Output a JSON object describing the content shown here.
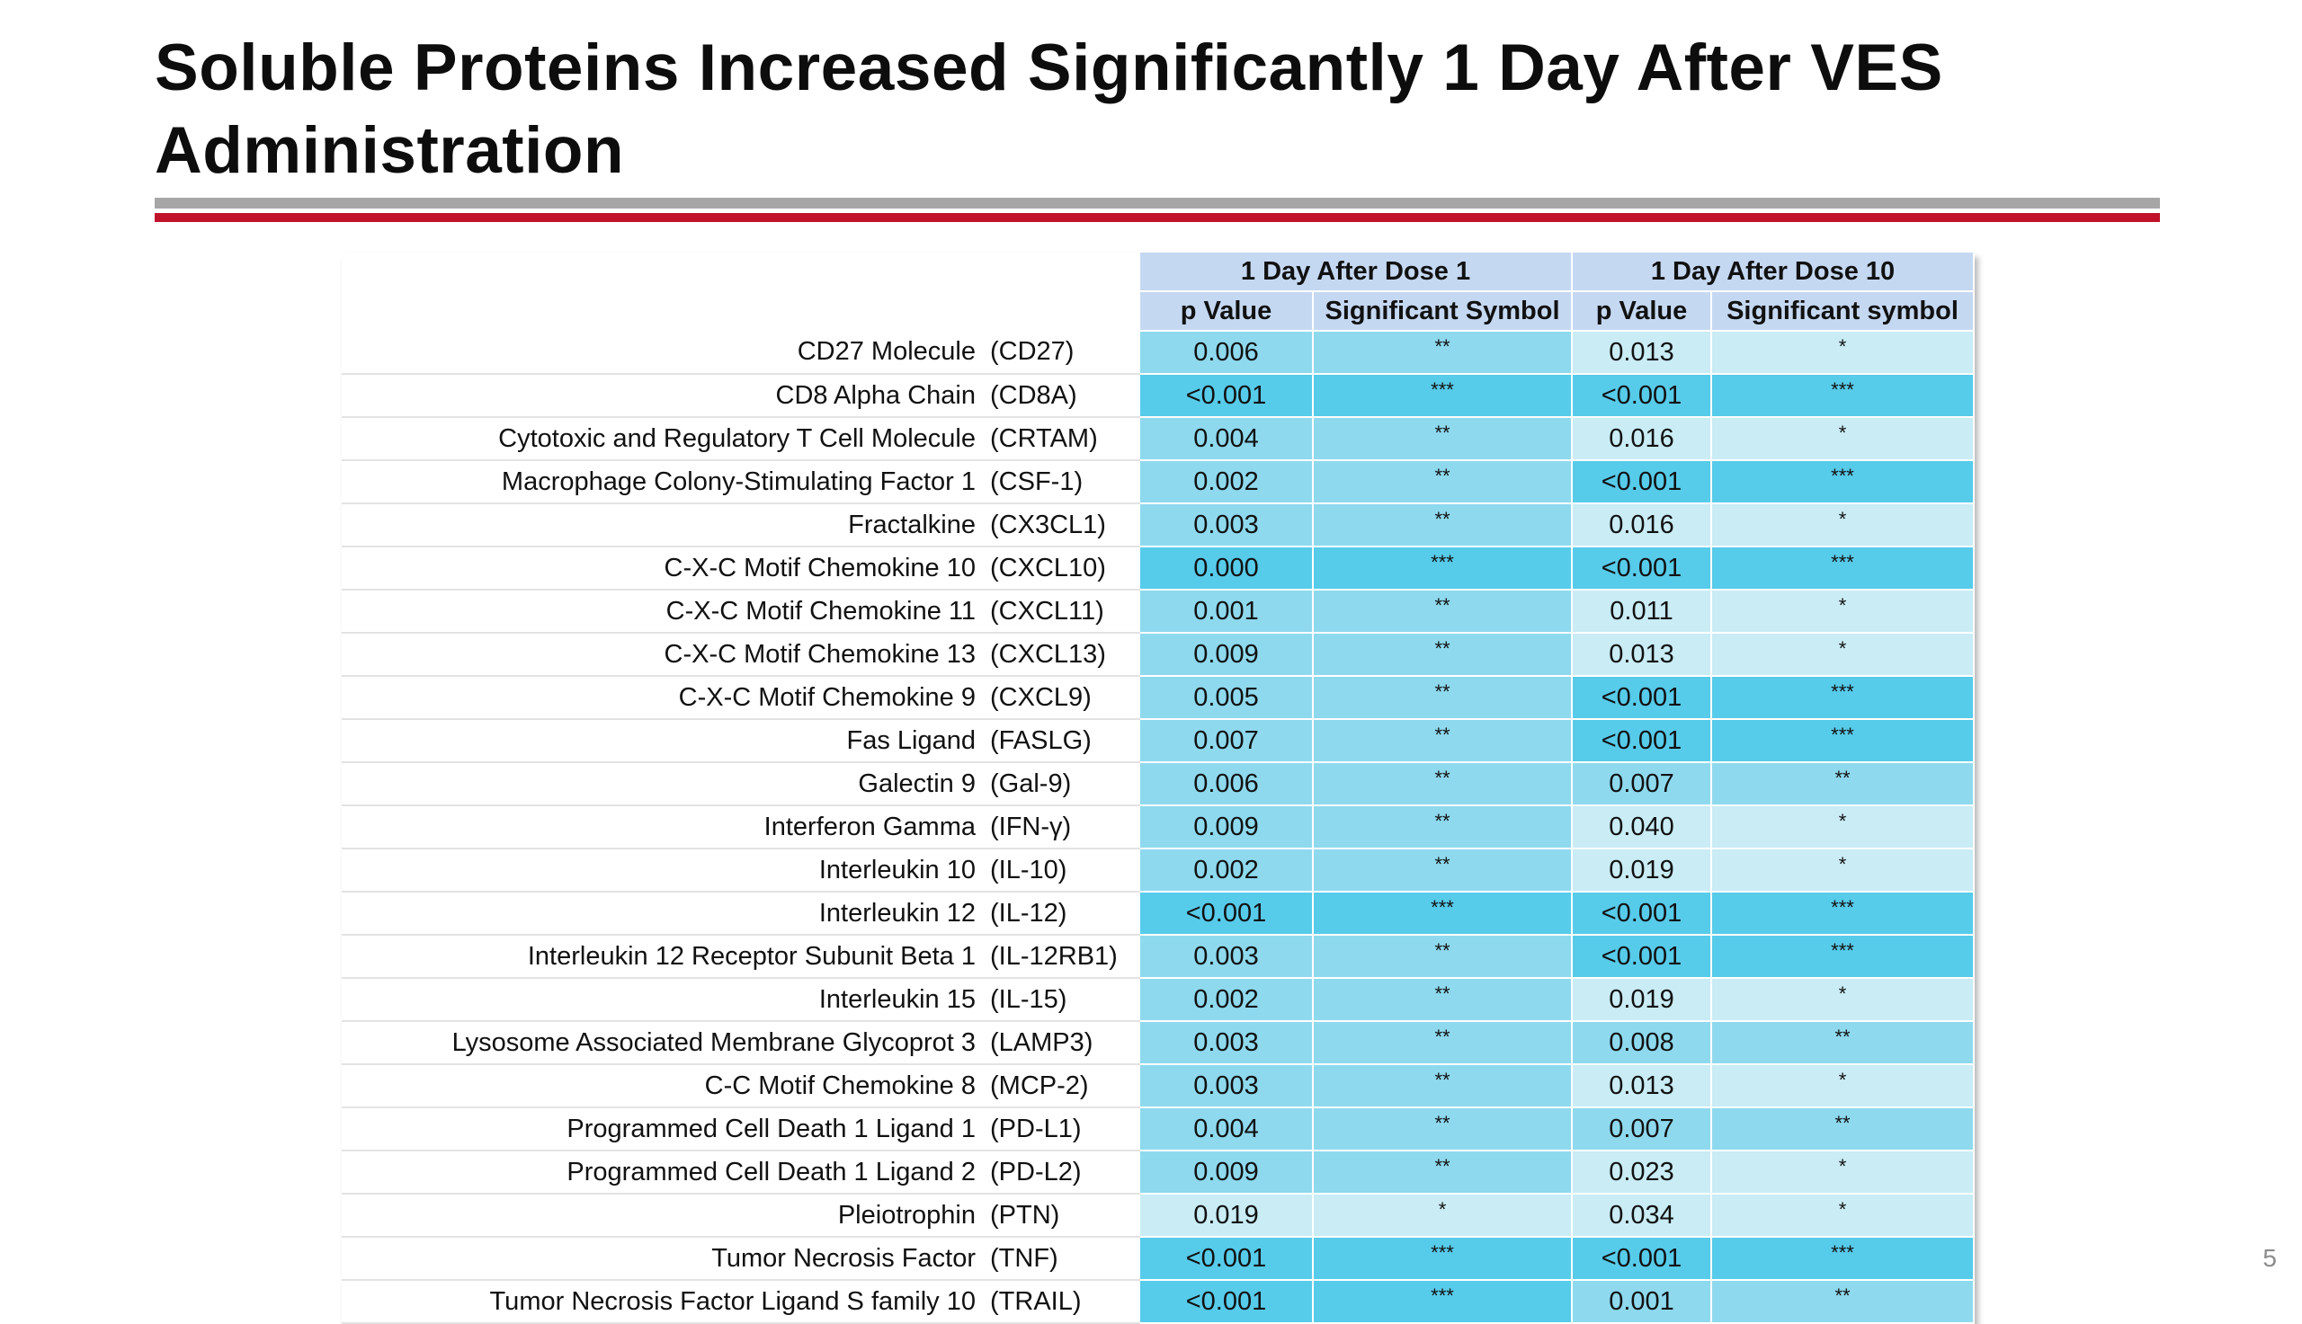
{
  "title": "Soluble Proteins Increased Significantly 1 Day After VES Administration",
  "page_number": "5",
  "colors": {
    "title_rule_gray": "#a6a6a6",
    "title_rule_red": "#c0132a",
    "header_bg": "#c5d8f2",
    "level_1_star": "#c9ecf5",
    "level_2_star": "#8ed9ee",
    "level_3_star": "#57cbea"
  },
  "table": {
    "group_headers": [
      "1 Day After Dose 1",
      "1 Day After Dose 10"
    ],
    "column_headers": [
      "p Value",
      "Significant Symbol",
      "p Value",
      "Significant symbol"
    ],
    "rows": [
      {
        "name": "CD27 Molecule",
        "abbr": "(CD27)",
        "d1_p": "0.006",
        "d1_sym": "**",
        "d10_p": "0.013",
        "d10_sym": "*"
      },
      {
        "name": "CD8 Alpha Chain",
        "abbr": "(CD8A)",
        "d1_p": "<0.001",
        "d1_sym": "***",
        "d10_p": "<0.001",
        "d10_sym": "***"
      },
      {
        "name": "Cytotoxic and Regulatory T Cell Molecule",
        "abbr": "(CRTAM)",
        "d1_p": "0.004",
        "d1_sym": "**",
        "d10_p": "0.016",
        "d10_sym": "*"
      },
      {
        "name": "Macrophage Colony-Stimulating Factor 1",
        "abbr": "(CSF-1)",
        "d1_p": "0.002",
        "d1_sym": "**",
        "d10_p": "<0.001",
        "d10_sym": "***"
      },
      {
        "name": "Fractalkine",
        "abbr": "(CX3CL1)",
        "d1_p": "0.003",
        "d1_sym": "**",
        "d10_p": "0.016",
        "d10_sym": "*"
      },
      {
        "name": "C-X-C Motif Chemokine 10",
        "abbr": "(CXCL10)",
        "d1_p": "0.000",
        "d1_sym": "***",
        "d10_p": "<0.001",
        "d10_sym": "***"
      },
      {
        "name": "C-X-C Motif Chemokine 11",
        "abbr": "(CXCL11)",
        "d1_p": "0.001",
        "d1_sym": "**",
        "d10_p": "0.011",
        "d10_sym": "*"
      },
      {
        "name": "C-X-C Motif Chemokine 13",
        "abbr": "(CXCL13)",
        "d1_p": "0.009",
        "d1_sym": "**",
        "d10_p": "0.013",
        "d10_sym": "*"
      },
      {
        "name": "C-X-C Motif Chemokine 9",
        "abbr": "(CXCL9)",
        "d1_p": "0.005",
        "d1_sym": "**",
        "d10_p": "<0.001",
        "d10_sym": "***"
      },
      {
        "name": "Fas Ligand",
        "abbr": "(FASLG)",
        "d1_p": "0.007",
        "d1_sym": "**",
        "d10_p": "<0.001",
        "d10_sym": "***"
      },
      {
        "name": "Galectin 9",
        "abbr": "(Gal-9)",
        "d1_p": "0.006",
        "d1_sym": "**",
        "d10_p": "0.007",
        "d10_sym": "**"
      },
      {
        "name": "Interferon Gamma",
        "abbr": "(IFN-γ)",
        "d1_p": "0.009",
        "d1_sym": "**",
        "d10_p": "0.040",
        "d10_sym": "*"
      },
      {
        "name": "Interleukin 10",
        "abbr": "(IL-10)",
        "d1_p": "0.002",
        "d1_sym": "**",
        "d10_p": "0.019",
        "d10_sym": "*"
      },
      {
        "name": "Interleukin 12",
        "abbr": "(IL-12)",
        "d1_p": "<0.001",
        "d1_sym": "***",
        "d10_p": "<0.001",
        "d10_sym": "***"
      },
      {
        "name": "Interleukin 12 Receptor Subunit Beta 1",
        "abbr": "(IL-12RB1)",
        "d1_p": "0.003",
        "d1_sym": "**",
        "d10_p": "<0.001",
        "d10_sym": "***"
      },
      {
        "name": "Interleukin 15",
        "abbr": "(IL-15)",
        "d1_p": "0.002",
        "d1_sym": "**",
        "d10_p": "0.019",
        "d10_sym": "*"
      },
      {
        "name": "Lysosome Associated Membrane Glycoprot 3",
        "abbr": "(LAMP3)",
        "d1_p": "0.003",
        "d1_sym": "**",
        "d10_p": "0.008",
        "d10_sym": "**"
      },
      {
        "name": "C-C Motif Chemokine 8",
        "abbr": "(MCP-2)",
        "d1_p": "0.003",
        "d1_sym": "**",
        "d10_p": "0.013",
        "d10_sym": "*"
      },
      {
        "name": "Programmed Cell Death 1 Ligand 1",
        "abbr": "(PD-L1)",
        "d1_p": "0.004",
        "d1_sym": "**",
        "d10_p": "0.007",
        "d10_sym": "**"
      },
      {
        "name": "Programmed Cell Death 1 Ligand 2",
        "abbr": "(PD-L2)",
        "d1_p": "0.009",
        "d1_sym": "**",
        "d10_p": "0.023",
        "d10_sym": "*"
      },
      {
        "name": "Pleiotrophin",
        "abbr": "(PTN)",
        "d1_p": "0.019",
        "d1_sym": "*",
        "d10_p": "0.034",
        "d10_sym": "*"
      },
      {
        "name": "Tumor Necrosis Factor",
        "abbr": "(TNF)",
        "d1_p": "<0.001",
        "d1_sym": "***",
        "d10_p": "<0.001",
        "d10_sym": "***"
      },
      {
        "name": "Tumor Necrosis Factor Ligand S family 10",
        "abbr": "(TRAIL)",
        "d1_p": "<0.001",
        "d1_sym": "***",
        "d10_p": "0.001",
        "d10_sym": "**"
      }
    ]
  }
}
